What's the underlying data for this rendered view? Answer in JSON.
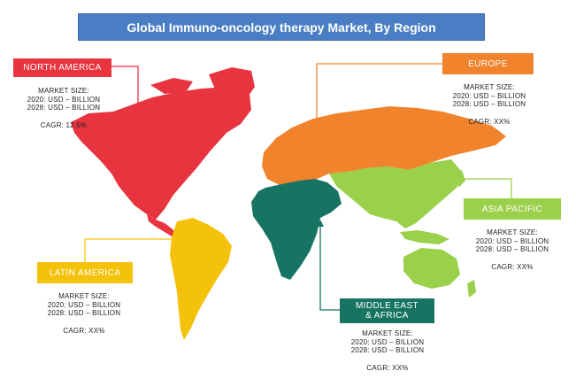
{
  "title": "Global Immuno-oncology therapy Market, By Region",
  "colors": {
    "north_america": "#e8343f",
    "europe": "#f0832b",
    "asia_pacific": "#9bd04a",
    "middle_east_africa": "#177463",
    "latin_america": "#f4c20a",
    "title_bg": "#4a7ec4"
  },
  "regions": {
    "north_america": {
      "name": "NORTH AMERICA",
      "market_size_label": "MARKET SIZE:",
      "line_2020": "2020: USD – BILLION",
      "line_2028": "2028: USD – BILLION",
      "cagr": "CAGR: 12.5%"
    },
    "europe": {
      "name": "EUROPE",
      "market_size_label": "MARKET SIZE:",
      "line_2020": "2020: USD – BILLION",
      "line_2028": "2028: USD – BILLION",
      "cagr": "CAGR: XX%"
    },
    "asia_pacific": {
      "name": "ASIA PACIFIC",
      "market_size_label": "MARKET SIZE:",
      "line_2020": "2020: USD – BILLION",
      "line_2028": "2028: USD – BILLION",
      "cagr": "CAGR: XX%"
    },
    "latin_america": {
      "name": "LATIN AMERICA",
      "market_size_label": "MARKET SIZE:",
      "line_2020": "2020: USD – BILLION",
      "line_2028": "2028: USD – BILLION",
      "cagr": "CAGR: XX%"
    },
    "middle_east_africa": {
      "name_line1": "MIDDLE EAST",
      "name_line2": "& AFRICA",
      "market_size_label": "MARKET SIZE:",
      "line_2020": "2020: USD – BILLION",
      "line_2028": "2028: USD – BILLION",
      "cagr": "CAGR: XX%"
    }
  }
}
